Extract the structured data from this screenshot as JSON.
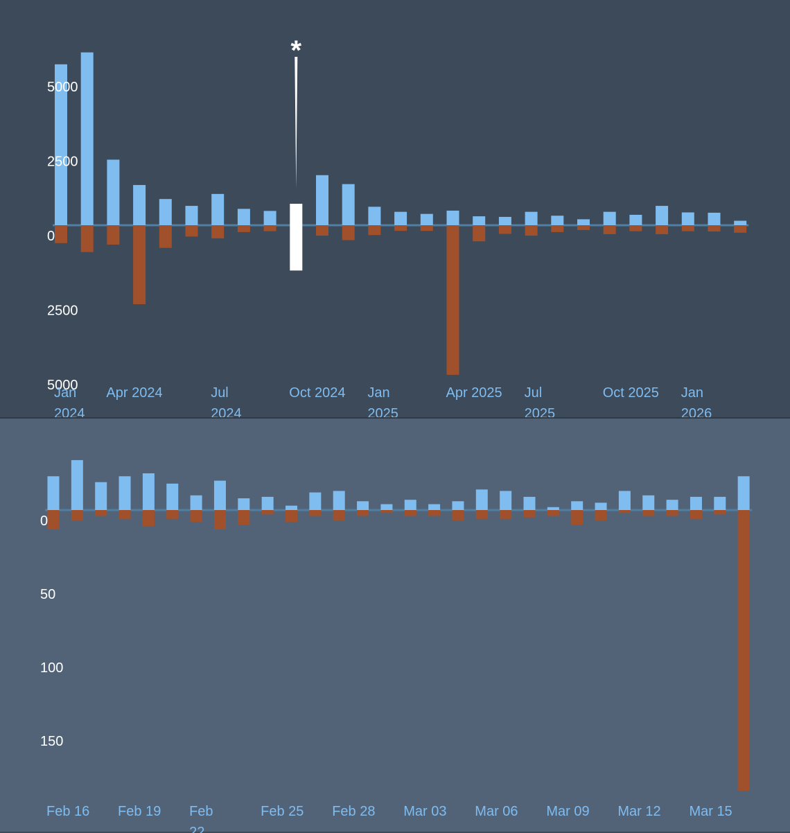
{
  "colors": {
    "positive": "#7fbcf0",
    "negative": "#a0512c",
    "highlight": "#ffffff",
    "baseline": "#4f7fa3"
  },
  "chart_data": [
    {
      "type": "bar",
      "title": "",
      "xlabel": "",
      "ylabel": "",
      "ylim": [
        -5000,
        5000
      ],
      "yticks": [
        {
          "value": 5000,
          "label": "5000"
        },
        {
          "value": 2500,
          "label": "2500"
        },
        {
          "value": 0,
          "label": "0"
        },
        {
          "value": -2500,
          "label": "2500"
        },
        {
          "value": -5000,
          "label": "5000"
        }
      ],
      "xticks": [
        {
          "index": 0,
          "label": [
            "Jan",
            "2024"
          ]
        },
        {
          "index": 2,
          "label": [
            "Apr 2024"
          ]
        },
        {
          "index": 6,
          "label": [
            "Jul",
            "2024"
          ]
        },
        {
          "index": 9,
          "label": [
            "Oct 2024"
          ]
        },
        {
          "index": 12,
          "label": [
            "Jan",
            "2025"
          ]
        },
        {
          "index": 15,
          "label": [
            "Apr 2025"
          ]
        },
        {
          "index": 18,
          "label": [
            "Jul",
            "2025"
          ]
        },
        {
          "index": 21,
          "label": [
            "Oct 2025"
          ]
        },
        {
          "index": 24,
          "label": [
            "Jan",
            "2026"
          ]
        }
      ],
      "positive_values": [
        5400,
        5800,
        2200,
        1350,
        880,
        650,
        1050,
        550,
        480,
        0,
        1680,
        1380,
        620,
        450,
        380,
        490,
        300,
        280,
        450,
        320,
        200,
        450,
        350,
        650,
        430,
        420,
        150
      ],
      "negative_values": [
        -600,
        -900,
        -650,
        -2650,
        -760,
        -380,
        -440,
        -230,
        -200,
        0,
        -350,
        -500,
        -330,
        -190,
        -190,
        -5020,
        -540,
        -290,
        -350,
        -230,
        -160,
        -300,
        -200,
        -300,
        -200,
        -210,
        -250
      ],
      "highlight": {
        "index": 9,
        "positive": 720,
        "negative": -1520,
        "label": "*"
      }
    },
    {
      "type": "bar",
      "title": "",
      "xlabel": "",
      "ylabel": "",
      "ylim": [
        -190,
        35
      ],
      "yticks": [
        {
          "value": 0,
          "label": "0"
        },
        {
          "value": -50,
          "label": "50"
        },
        {
          "value": -100,
          "label": "100"
        },
        {
          "value": -150,
          "label": "150"
        }
      ],
      "xticks": [
        {
          "index": 0,
          "label": [
            "Feb 16"
          ]
        },
        {
          "index": 3,
          "label": [
            "Feb 19"
          ]
        },
        {
          "index": 6,
          "label": [
            "Feb",
            "22"
          ]
        },
        {
          "index": 9,
          "label": [
            "Feb 25"
          ]
        },
        {
          "index": 12,
          "label": [
            "Feb 28"
          ]
        },
        {
          "index": 15,
          "label": [
            "Mar 03"
          ]
        },
        {
          "index": 18,
          "label": [
            "Mar 06"
          ]
        },
        {
          "index": 21,
          "label": [
            "Mar 09"
          ]
        },
        {
          "index": 24,
          "label": [
            "Mar 12"
          ]
        },
        {
          "index": 27,
          "label": [
            "Mar 15"
          ]
        }
      ],
      "positive_values": [
        23,
        34,
        19,
        23,
        25,
        18,
        10,
        20,
        8,
        9,
        3,
        12,
        13,
        6,
        4,
        7,
        4,
        6,
        14,
        13,
        9,
        2,
        6,
        5,
        13,
        10,
        7,
        9,
        9,
        23
      ],
      "negative_values": [
        -13,
        -7,
        -4,
        -6,
        -11,
        -6,
        -8,
        -13,
        -10,
        -3,
        -8,
        -4,
        -7,
        -4,
        -2,
        -4,
        -4,
        -7,
        -6,
        -6,
        -5,
        -4,
        -10,
        -7,
        -2,
        -4,
        -4,
        -6,
        -3,
        -191
      ]
    }
  ]
}
